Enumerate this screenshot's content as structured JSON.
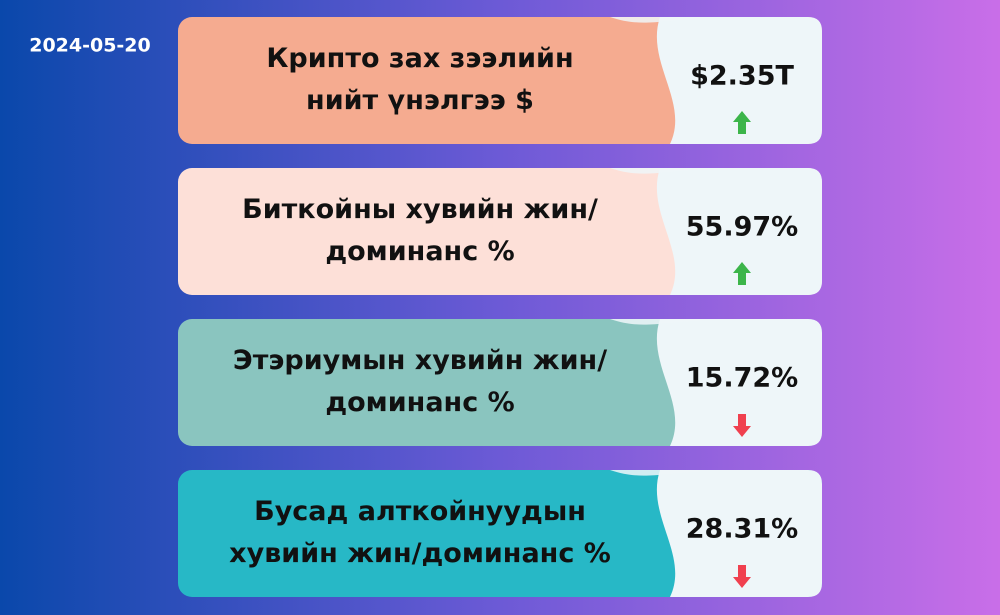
{
  "date": "2024-05-20",
  "cards": [
    {
      "label": [
        "Крипто зах зээлийн",
        "нийт үнэлгээ $"
      ],
      "value": "$2.35T",
      "trend": "up",
      "color": "#f5ab90"
    },
    {
      "label": [
        "Биткойны хувийн жин/",
        "доминанс %"
      ],
      "value": "55.97%",
      "trend": "up",
      "color": "#fde0d8"
    },
    {
      "label": [
        "Этэриумын хувийн жин/",
        "доминанс %"
      ],
      "value": "15.72%",
      "trend": "down",
      "color": "#8ac5bf"
    },
    {
      "label": [
        "Бусад алткойнуудын",
        "хувийн жин/доминанс %"
      ],
      "value": "28.31%",
      "trend": "down",
      "color": "#27b8c6"
    }
  ]
}
